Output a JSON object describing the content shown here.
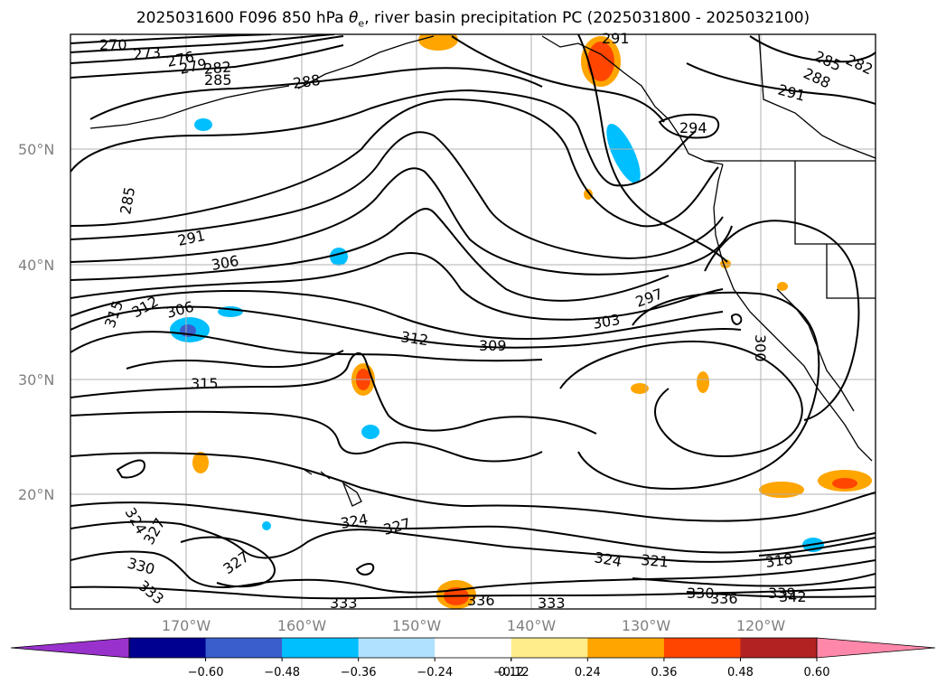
{
  "chart_data": {
    "type": "contour_map",
    "title_prefix": "2025031600 F096 850 hPa ",
    "title_symbol": "θ",
    "title_subscript": "e",
    "title_suffix": ", river basin precipitation PC (2025031800 - 2025032100)",
    "lat_ticks": [
      "50°N",
      "40°N",
      "30°N",
      "20°N"
    ],
    "lon_ticks": [
      "170°W",
      "160°W",
      "150°W",
      "140°W",
      "130°W",
      "120°W"
    ],
    "contour_labels": [
      {
        "text": "270"
      },
      {
        "text": "273"
      },
      {
        "text": "276"
      },
      {
        "text": "279"
      },
      {
        "text": "282"
      },
      {
        "text": "285"
      },
      {
        "text": "288"
      },
      {
        "text": "291"
      },
      {
        "text": "285"
      },
      {
        "text": "282"
      },
      {
        "text": "288"
      },
      {
        "text": "291"
      },
      {
        "text": "294"
      },
      {
        "text": "285"
      },
      {
        "text": "291"
      },
      {
        "text": "306"
      },
      {
        "text": "312"
      },
      {
        "text": "315"
      },
      {
        "text": "306"
      },
      {
        "text": "312"
      },
      {
        "text": "309"
      },
      {
        "text": "303"
      },
      {
        "text": "297"
      },
      {
        "text": "300"
      },
      {
        "text": "315"
      },
      {
        "text": "324"
      },
      {
        "text": "327"
      },
      {
        "text": "330"
      },
      {
        "text": "333"
      },
      {
        "text": "327"
      },
      {
        "text": "324"
      },
      {
        "text": "327"
      },
      {
        "text": "333"
      },
      {
        "text": "336"
      },
      {
        "text": "333"
      },
      {
        "text": "324"
      },
      {
        "text": "321"
      },
      {
        "text": "318"
      },
      {
        "text": "330"
      },
      {
        "text": "336"
      },
      {
        "text": "339"
      },
      {
        "text": "342"
      }
    ],
    "colorbar": {
      "ticks": [
        "−0.60",
        "−0.48",
        "−0.36",
        "−0.24",
        "−0.12",
        "0.12",
        "0.24",
        "0.36",
        "0.48",
        "0.60"
      ],
      "under_color": "#9932cc",
      "over_color": "#ff88aa",
      "colors": [
        "#000090",
        "#3a5fcd",
        "#00bfff",
        "#b0e2ff",
        "#ffffff",
        "#ffec8b",
        "#ffa500",
        "#ff4500",
        "#b22222"
      ]
    }
  }
}
